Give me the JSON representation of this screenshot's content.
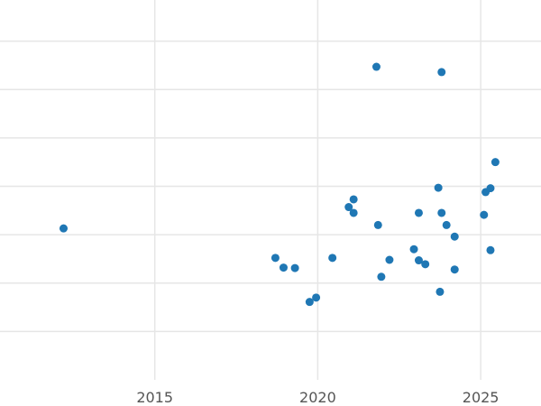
{
  "chart_data": {
    "type": "scatter",
    "title": "",
    "xlabel": "",
    "ylabel": "",
    "xlim": [
      2010.25,
      2026.85
    ],
    "ylim": [
      0,
      7.85
    ],
    "grid": true,
    "legend": "none",
    "x_ticks": [
      2015,
      2020,
      2025
    ],
    "x_tick_labels": [
      "2015",
      "2020",
      "2025"
    ],
    "y_gridlines": [
      1,
      2,
      3,
      4,
      5,
      6,
      7
    ],
    "y_tick_labels": [],
    "point_color": "#1f77b4",
    "series": [
      {
        "x": [
          2012.2,
          2018.7,
          2018.95,
          2019.3,
          2019.75,
          2019.95,
          2020.45,
          2020.95,
          2021.1,
          2021.1,
          2021.8,
          2021.85,
          2021.95,
          2022.2,
          2022.95,
          2023.1,
          2023.1,
          2023.3,
          2023.7,
          2023.75,
          2023.8,
          2023.8,
          2023.95,
          2024.2,
          2024.2,
          2025.1,
          2025.15,
          2025.3,
          2025.3,
          2025.45
        ],
        "y": [
          3.13,
          2.52,
          2.32,
          2.31,
          1.61,
          1.7,
          2.52,
          3.57,
          3.45,
          3.73,
          6.47,
          3.2,
          2.13,
          2.48,
          2.7,
          3.45,
          2.47,
          2.39,
          3.97,
          1.82,
          3.45,
          6.36,
          3.2,
          2.28,
          2.96,
          3.41,
          3.88,
          3.96,
          2.68,
          4.5
        ]
      }
    ]
  }
}
